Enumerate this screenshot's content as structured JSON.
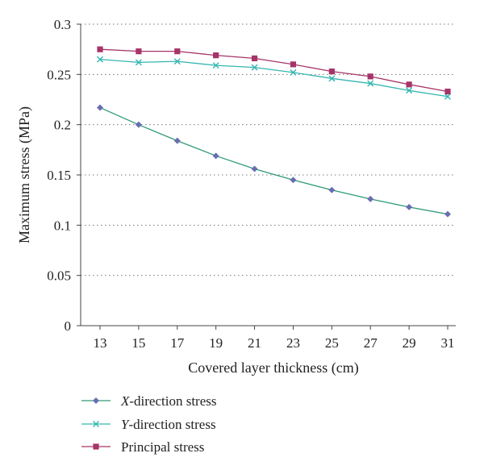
{
  "chart_data": {
    "type": "line",
    "title": "",
    "xlabel": "Covered layer thickness (cm)",
    "ylabel": "Maximum stress (MPa)",
    "x": [
      13,
      15,
      17,
      19,
      21,
      23,
      25,
      27,
      29,
      31
    ],
    "x_ticks": [
      "13",
      "15",
      "17",
      "19",
      "21",
      "23",
      "25",
      "27",
      "29",
      "31"
    ],
    "ylim": [
      0,
      0.3
    ],
    "y_ticks": [
      "0",
      "0.05",
      "0.1",
      "0.15",
      "0.2",
      "0.25",
      "0.3"
    ],
    "grid": "horizontal dotted",
    "legend_position": "bottom-left",
    "series": [
      {
        "name": "X-direction stress",
        "name_prefix": "X",
        "name_suffix": "-direction stress",
        "marker": "diamond",
        "color": "#6a6db0",
        "line_color": "#2e9a78",
        "values": [
          0.217,
          0.2,
          0.184,
          0.169,
          0.156,
          0.145,
          0.135,
          0.126,
          0.118,
          0.111
        ]
      },
      {
        "name": "Y-direction stress",
        "name_prefix": "Y",
        "name_suffix": "-direction stress",
        "marker": "x",
        "color": "#35b6b1",
        "line_color": "#35b6b1",
        "values": [
          0.265,
          0.262,
          0.263,
          0.259,
          0.257,
          0.252,
          0.246,
          0.241,
          0.234,
          0.228
        ]
      },
      {
        "name": "Principal stress",
        "name_prefix": "",
        "name_suffix": "Principal stress",
        "marker": "square",
        "color": "#a63468",
        "line_color": "#a63468",
        "values": [
          0.275,
          0.273,
          0.273,
          0.269,
          0.266,
          0.26,
          0.253,
          0.248,
          0.24,
          0.233
        ]
      }
    ]
  }
}
